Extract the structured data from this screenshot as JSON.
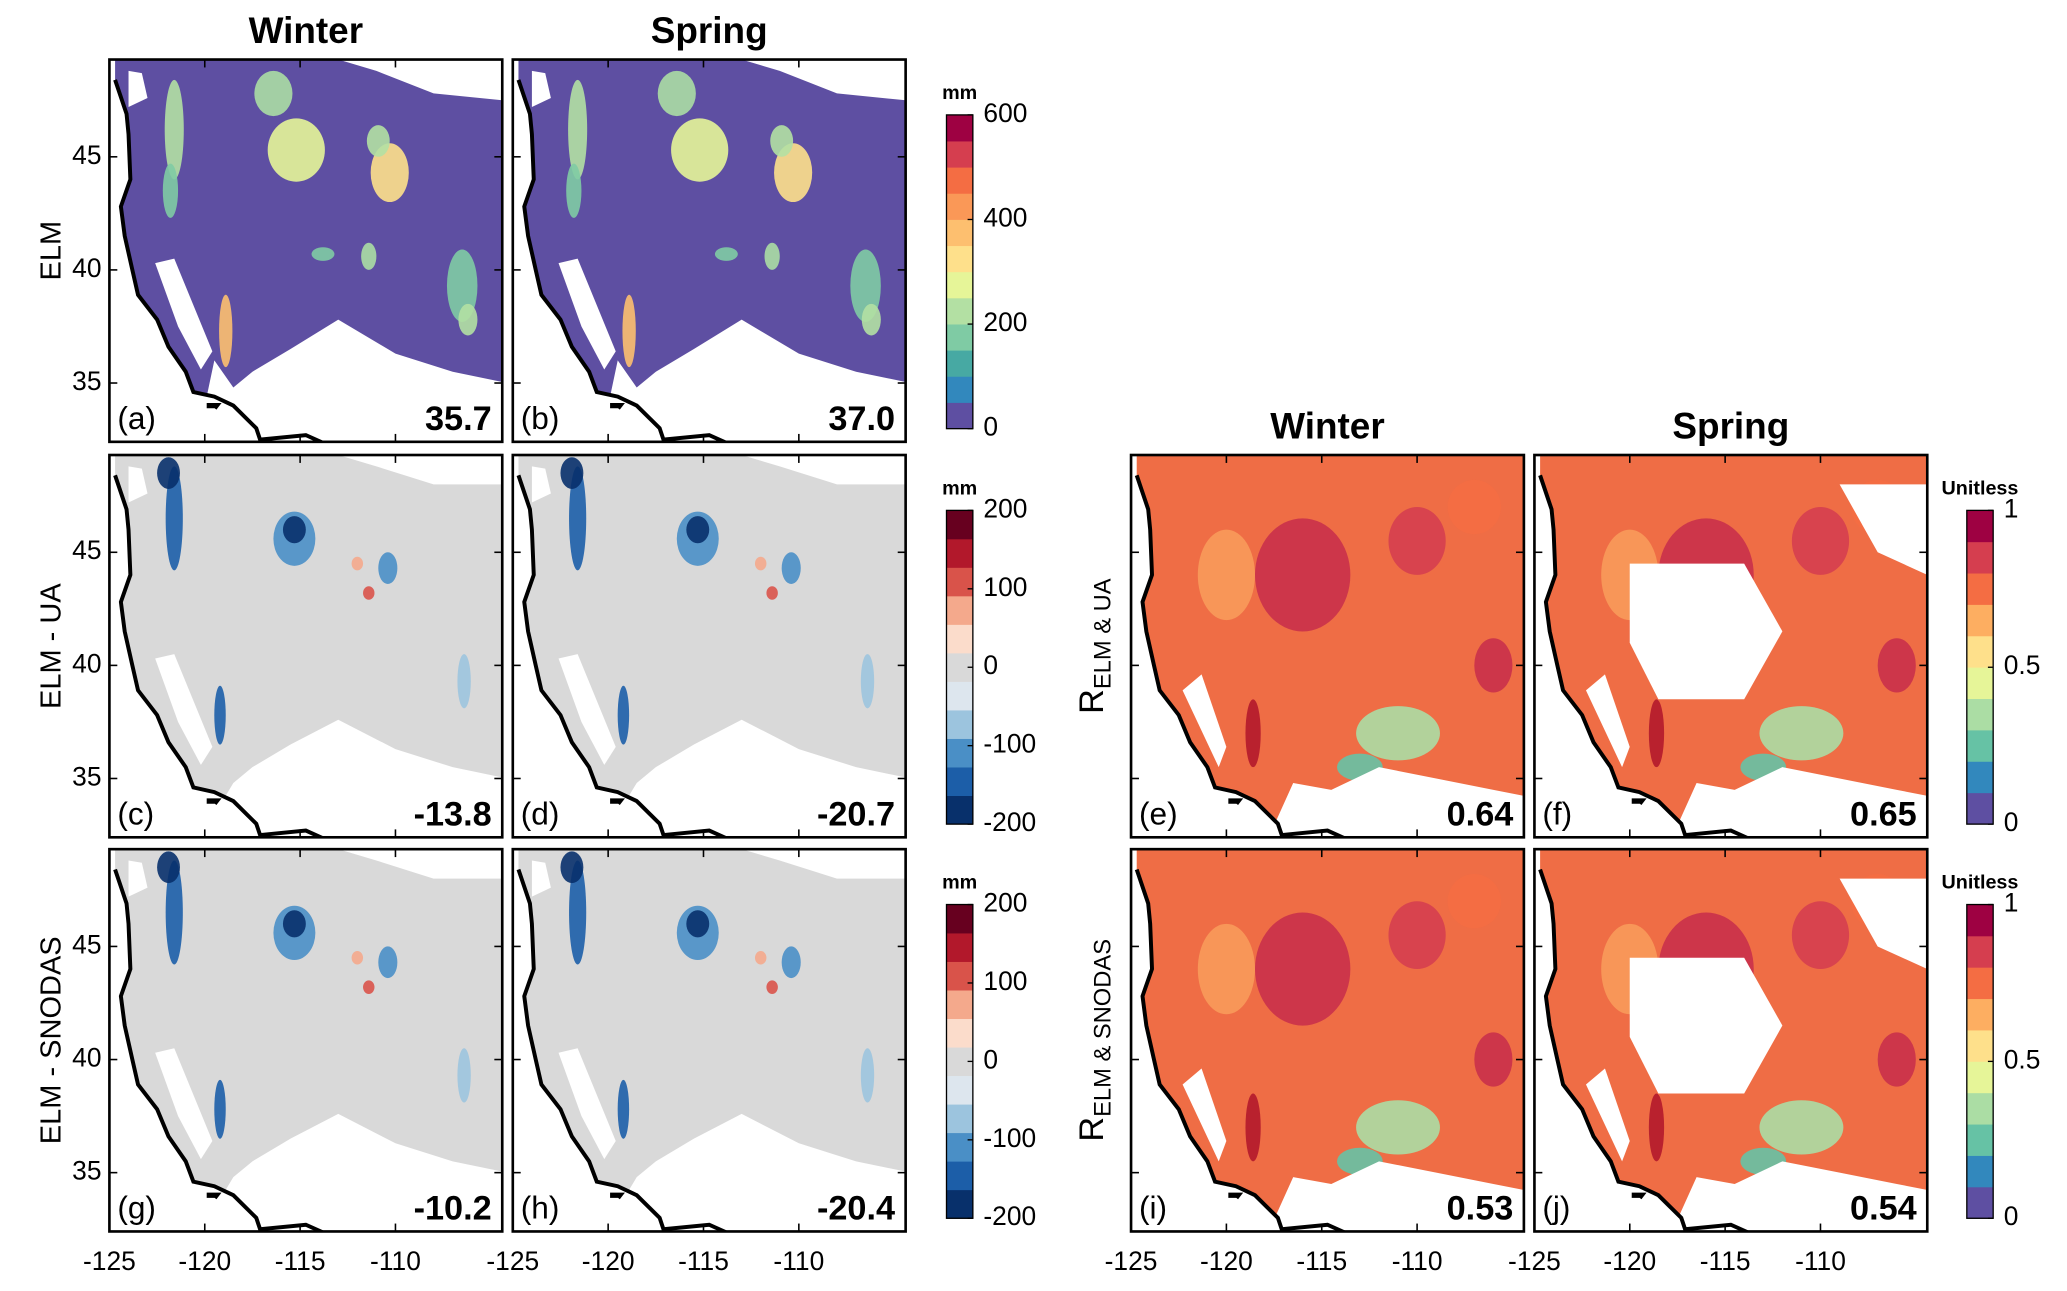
{
  "groups": [
    {
      "column_titles": [
        "Winter",
        "Spring"
      ],
      "rows": [
        {
          "label": "ELM",
          "panels": [
            {
              "tag": "(a)",
              "stat": "35.7"
            },
            {
              "tag": "(b)",
              "stat": "37.0"
            }
          ],
          "colorbar": {
            "unit": "mm",
            "clim": [
              0,
              600
            ],
            "ticks": [
              0,
              200,
              400,
              600
            ],
            "colors": [
              "#5e4fa2",
              "#3288bd",
              "#47a9a3",
              "#7fcba4",
              "#b3e0a3",
              "#e6f598",
              "#fee08b",
              "#fdbf6f",
              "#fa9857",
              "#f46d43",
              "#d53e4f",
              "#9e0142"
            ]
          }
        },
        {
          "label": "ELM - UA",
          "panels": [
            {
              "tag": "(c)",
              "stat": "-13.8"
            },
            {
              "tag": "(d)",
              "stat": "-20.7"
            }
          ],
          "colorbar": {
            "unit": "mm",
            "clim": [
              -200,
              200
            ],
            "ticks": [
              -200,
              -100,
              0,
              100,
              200
            ],
            "colors": [
              "#08306b",
              "#1c5ea8",
              "#4a8fc6",
              "#9cc4de",
              "#dde6ee",
              "#d9d9d9",
              "#fbdccb",
              "#f4a98c",
              "#d9534a",
              "#b2182b",
              "#67001f"
            ]
          }
        },
        {
          "label": "ELM - SNODAS",
          "panels": [
            {
              "tag": "(g)",
              "stat": "-10.2"
            },
            {
              "tag": "(h)",
              "stat": "-20.4"
            }
          ],
          "colorbar": {
            "unit": "mm",
            "clim": [
              -200,
              200
            ],
            "ticks": [
              -200,
              -100,
              0,
              100,
              200
            ],
            "colors": [
              "#08306b",
              "#1c5ea8",
              "#4a8fc6",
              "#9cc4de",
              "#dde6ee",
              "#d9d9d9",
              "#fbdccb",
              "#f4a98c",
              "#d9534a",
              "#b2182b",
              "#67001f"
            ]
          }
        }
      ]
    },
    {
      "column_titles": [
        "Winter",
        "Spring"
      ],
      "rows": [
        {
          "label": {
            "symbol": "R",
            "subscript": "ELM & UA"
          },
          "panels": [
            {
              "tag": "(e)",
              "stat": "0.64"
            },
            {
              "tag": "(f)",
              "stat": "0.65"
            }
          ],
          "colorbar": {
            "unit": "Unitless",
            "clim": [
              0,
              1
            ],
            "ticks": [
              0,
              0.5,
              1
            ],
            "colors": [
              "#5e4fa2",
              "#3288bd",
              "#66c2a5",
              "#abdda4",
              "#e6f598",
              "#fee08b",
              "#fdae61",
              "#f46d43",
              "#d53e4f",
              "#9e0142"
            ]
          }
        },
        {
          "label": {
            "symbol": "R",
            "subscript": "ELM & SNODAS"
          },
          "panels": [
            {
              "tag": "(i)",
              "stat": "0.53"
            },
            {
              "tag": "(j)",
              "stat": "0.54"
            }
          ],
          "colorbar": {
            "unit": "Unitless",
            "clim": [
              0,
              1
            ],
            "ticks": [
              0,
              0.5,
              1
            ],
            "colors": [
              "#5e4fa2",
              "#3288bd",
              "#66c2a5",
              "#abdda4",
              "#e6f598",
              "#fee08b",
              "#fdae61",
              "#f46d43",
              "#d53e4f",
              "#9e0142"
            ]
          }
        }
      ]
    }
  ],
  "axes": {
    "xlim": [
      -125,
      -104.4
    ],
    "ylim": [
      32.4,
      49.3
    ],
    "xticks": [
      -125,
      -120,
      -115,
      -110
    ],
    "yticks": [
      35,
      40,
      45
    ]
  }
}
